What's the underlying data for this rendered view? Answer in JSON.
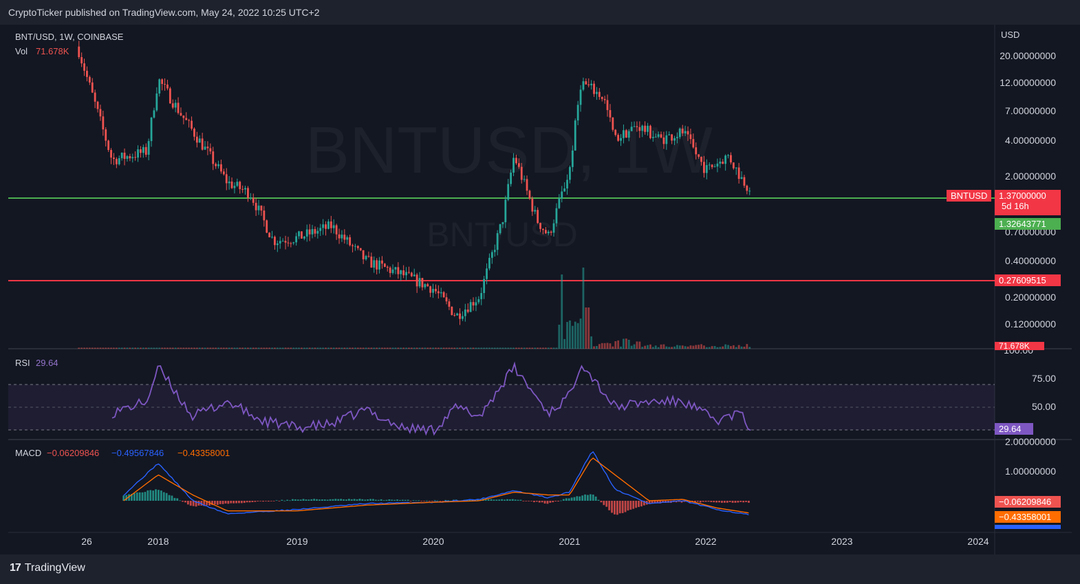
{
  "header": {
    "published": "CryptoTicker published on TradingView.com, May 24, 2022 10:25 UTC+2"
  },
  "footer": {
    "logo_mark": "17",
    "logo_text": "TradingView"
  },
  "chart": {
    "symbol_line": "BNT/USD, 1W, COINBASE",
    "vol_label": "Vol",
    "vol_value": "71.678K",
    "watermark_big": "BNTUSD, 1W",
    "watermark_small": "BNT/USD",
    "currency": "USD",
    "price_ticks": [
      "20.00000000",
      "12.00000000",
      "7.00000000",
      "4.00000000",
      "2.00000000",
      "0.70000000",
      "0.40000000",
      "0.20000000",
      "0.12000000",
      "100.00"
    ],
    "price_tag": {
      "symbol": "BNTUSD",
      "price": "1.37000000",
      "countdown": "5d 16h"
    },
    "green_tag": "1.32643771",
    "red_tag": "0.27609515",
    "vol_tag": "71.678K",
    "x_ticks": [
      "26",
      "2018",
      "2019",
      "2020",
      "2021",
      "2022",
      "2023",
      "2024"
    ]
  },
  "rsi_panel": {
    "label": "RSI",
    "value": "29.64",
    "ticks": [
      "75.00",
      "50.00"
    ],
    "tag": "29.64"
  },
  "macd_panel": {
    "label": "MACD",
    "hist": "−0.06209846",
    "macd": "−0.49567846",
    "signal": "−0.43358001",
    "ticks": [
      "2.00000000",
      "1.00000000"
    ],
    "tag_hist": "−0.06209846",
    "tag_signal": "−0.43358001"
  },
  "colors": {
    "up": "#26a69a",
    "down": "#ef5350",
    "green_line": "#4caf50",
    "red_line": "#f23645",
    "rsi": "#7e57c2",
    "macd": "#2962ff",
    "signal": "#ff6d00"
  },
  "chart_data": [
    {
      "type": "line",
      "title": "BNT/USD, 1W, COINBASE",
      "note_type": "candlestick, log price scale",
      "x": [
        "2017-06",
        "2017-09",
        "2017-12",
        "2018-01",
        "2018-03",
        "2018-05",
        "2018-07",
        "2018-09",
        "2018-11",
        "2019-01",
        "2019-04",
        "2019-07",
        "2019-10",
        "2020-01",
        "2020-03",
        "2020-05",
        "2020-07",
        "2020-08",
        "2020-10",
        "2020-11",
        "2021-01",
        "2021-02",
        "2021-04",
        "2021-05",
        "2021-07",
        "2021-09",
        "2021-11",
        "2022-01",
        "2022-03",
        "2022-04",
        "2022-05"
      ],
      "series": [
        {
          "values": [
            19.0,
            2.4,
            2.8,
            10.5,
            5.5,
            3.0,
            1.6,
            1.3,
            0.55,
            0.58,
            0.72,
            0.38,
            0.3,
            0.23,
            0.14,
            0.2,
            0.8,
            2.6,
            0.8,
            0.6,
            2.0,
            10.0,
            7.5,
            3.5,
            4.5,
            3.5,
            4.0,
            2.0,
            2.6,
            1.8,
            1.37
          ]
        }
      ],
      "ylim": [
        0.1,
        22
      ],
      "log_scale": true,
      "horizontal_levels": [
        1.32643771,
        0.27609515
      ],
      "last_price": 1.37
    },
    {
      "type": "line",
      "title": "RSI",
      "x": [
        "2017-09",
        "2017-12",
        "2018-01",
        "2018-04",
        "2018-07",
        "2018-10",
        "2019-01",
        "2019-04",
        "2019-07",
        "2019-10",
        "2020-01",
        "2020-03",
        "2020-05",
        "2020-08",
        "2020-11",
        "2021-01",
        "2021-02",
        "2021-05",
        "2021-08",
        "2021-11",
        "2022-02",
        "2022-04",
        "2022-05"
      ],
      "series": [
        {
          "name": "RSI",
          "values": [
            45,
            55,
            85,
            42,
            55,
            38,
            32,
            35,
            48,
            32,
            30,
            50,
            42,
            85,
            45,
            60,
            90,
            50,
            55,
            55,
            38,
            45,
            29.64
          ]
        }
      ],
      "ylim": [
        25,
        100
      ],
      "band": [
        30,
        70
      ]
    },
    {
      "type": "line",
      "title": "MACD",
      "x": [
        "2017-10",
        "2018-01",
        "2018-04",
        "2018-07",
        "2019-01",
        "2019-07",
        "2020-01",
        "2020-05",
        "2020-08",
        "2020-11",
        "2021-01",
        "2021-03",
        "2021-05",
        "2021-08",
        "2021-11",
        "2022-02",
        "2022-05"
      ],
      "series": [
        {
          "name": "MACD",
          "values": [
            0.2,
            1.3,
            0.0,
            -0.45,
            -0.3,
            -0.1,
            -0.05,
            0.05,
            0.35,
            0.1,
            0.3,
            1.75,
            0.4,
            -0.1,
            0.0,
            -0.3,
            -0.49567846
          ]
        },
        {
          "name": "Signal",
          "values": [
            0.0,
            0.9,
            0.2,
            -0.35,
            -0.35,
            -0.15,
            -0.05,
            0.0,
            0.3,
            0.2,
            0.2,
            1.5,
            0.9,
            0.0,
            0.05,
            -0.25,
            -0.43358001
          ]
        }
      ],
      "ylim": [
        -0.8,
        2.1
      ]
    }
  ]
}
